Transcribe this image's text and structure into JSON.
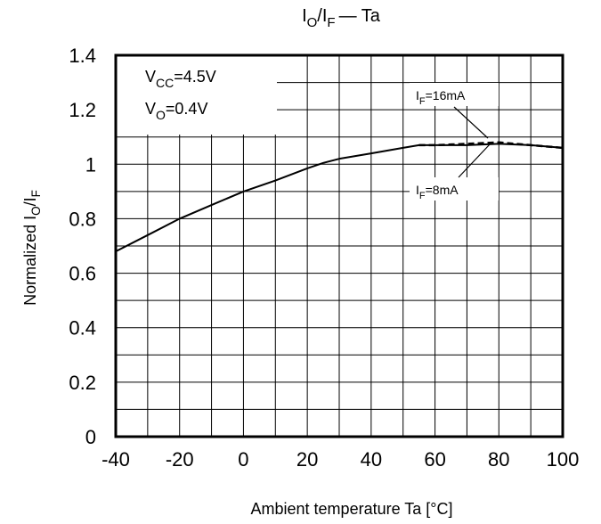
{
  "chart_data": {
    "type": "line",
    "title": {
      "main": "I",
      "sub1": "O",
      "mid": "/I",
      "sub2": "F",
      "tail": "— Ta"
    },
    "xlabel": "Ambient temperature Ta [°C]",
    "ylabel": {
      "main": "Normalized I",
      "sub1": "O",
      "mid": "/I",
      "sub2": "F"
    },
    "xlim": [
      -40,
      100
    ],
    "ylim": [
      0,
      1.4
    ],
    "xticks": [
      "-40",
      "-20",
      "0",
      "20",
      "40",
      "60",
      "80",
      "100"
    ],
    "yticks": [
      "0",
      "0.2",
      "0.4",
      "0.6",
      "0.8",
      "1",
      "1.2",
      "1.4"
    ],
    "grid": true,
    "x_minor_step": 10,
    "y_minor_step": 0.1,
    "conditions": [
      {
        "main": "V",
        "sub": "CC",
        "value": "=4.5V"
      },
      {
        "main": "V",
        "sub": "O",
        "value": "=0.4V"
      }
    ],
    "series": [
      {
        "style": "solid",
        "x": [
          -40,
          -30,
          -20,
          -10,
          0,
          10,
          20,
          25,
          30,
          40,
          50,
          55,
          60,
          70,
          80,
          90,
          100
        ],
        "y": [
          0.68,
          0.74,
          0.8,
          0.85,
          0.9,
          0.94,
          0.985,
          1.005,
          1.02,
          1.04,
          1.06,
          1.07,
          1.07,
          1.07,
          1.075,
          1.07,
          1.06
        ]
      },
      {
        "style": "dashed",
        "x": [
          55,
          60,
          70,
          80,
          90,
          100
        ],
        "y": [
          1.07,
          1.07,
          1.075,
          1.08,
          1.07,
          1.06
        ]
      }
    ],
    "annotations": [
      {
        "main": "I",
        "sub": "F",
        "value": "=16mA"
      },
      {
        "main": "I",
        "sub": "F",
        "value": "=8mA"
      }
    ]
  }
}
